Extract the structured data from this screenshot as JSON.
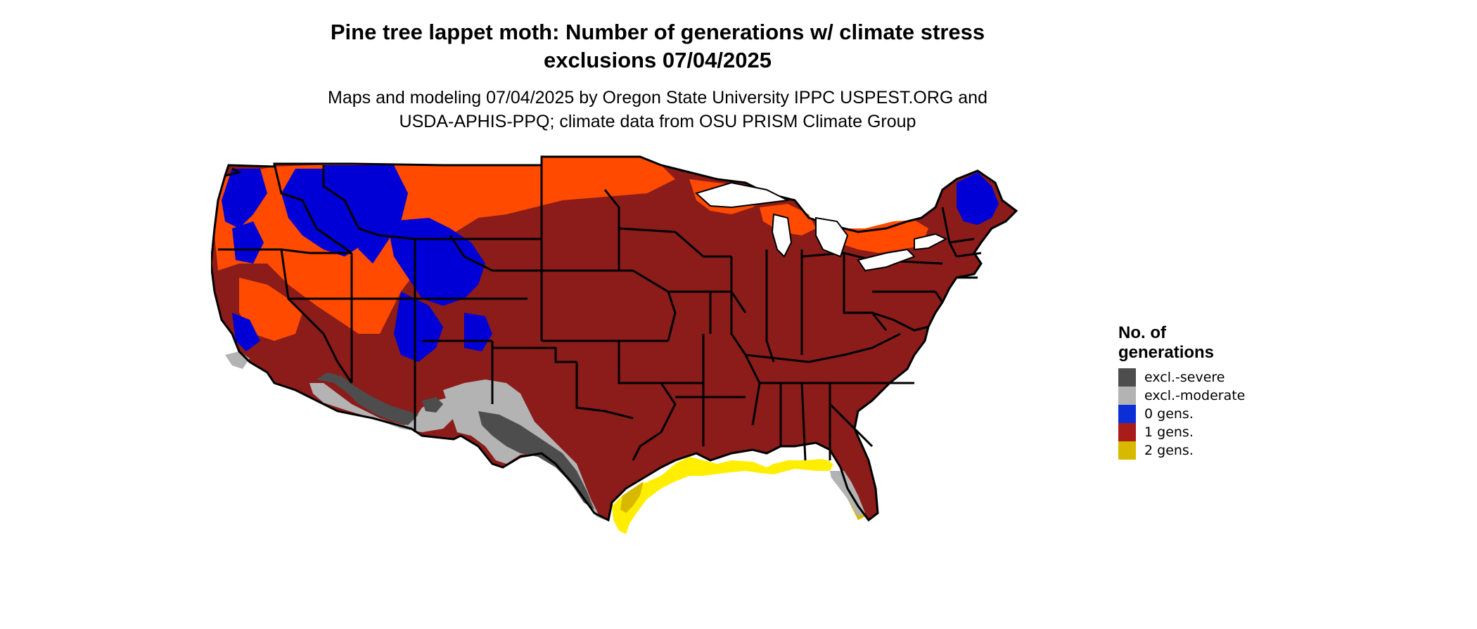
{
  "title": {
    "line1": "Pine tree lappet moth: Number of generations w/ climate stress",
    "line2": "exclusions 07/04/2025"
  },
  "subtitle": {
    "line1": "Maps and modeling 07/04/2025 by Oregon State University IPPC USPEST.ORG and",
    "line2": "USDA-APHIS-PPQ; climate data from OSU PRISM Climate Group"
  },
  "legend": {
    "title_line1": "No. of",
    "title_line2": "generations",
    "items": [
      {
        "label": "excl.-severe",
        "color": "#4d4d4d"
      },
      {
        "label": "excl.-moderate",
        "color": "#b3b3b3"
      },
      {
        "label": "0 gens.",
        "color": "#0a2fd6"
      },
      {
        "label": "1 gens.",
        "color": "#a81d1a"
      },
      {
        "label": "2 gens.",
        "color": "#d8b900"
      }
    ]
  },
  "map": {
    "colors": {
      "dark_red": "#8b1c1a",
      "orange": "#ff4a00",
      "blue": "#0000d6",
      "light_gray": "#b3b3b3",
      "dark_gray": "#4d4d4d",
      "yellow": "#ffee00",
      "gold": "#d8b900",
      "border": "#000000"
    }
  }
}
